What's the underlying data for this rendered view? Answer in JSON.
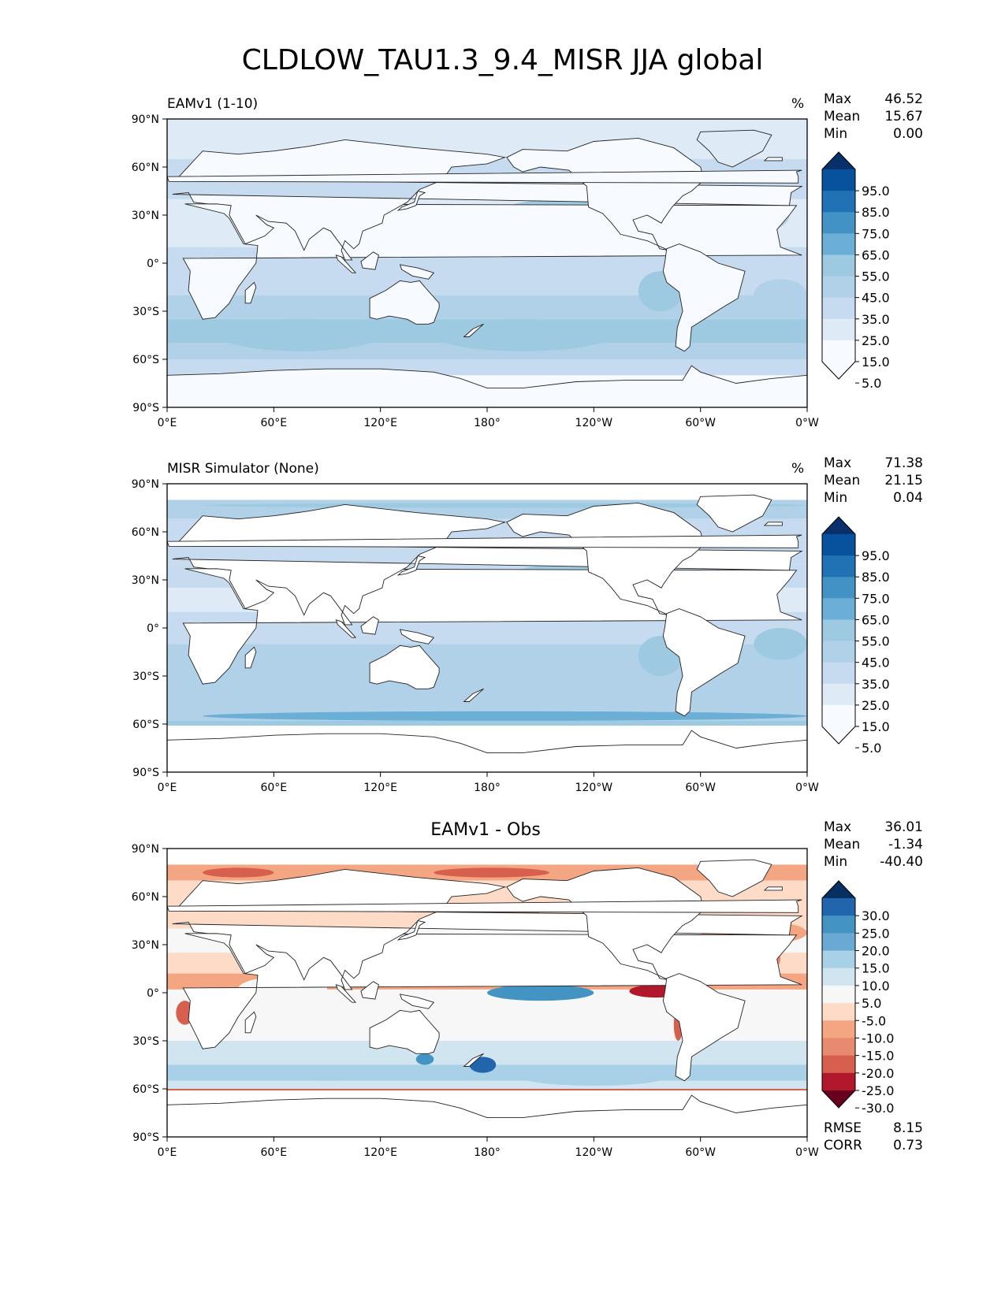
{
  "title": "CLDLOW_TAU1.3_9.4_MISR JJA global",
  "colors": {
    "blues": [
      "#f7fbff",
      "#deebf7",
      "#c6dbef",
      "#b0d1e8",
      "#9ecae1",
      "#6baed6",
      "#4292c6",
      "#2171b5",
      "#08519c",
      "#08306b"
    ],
    "diff": [
      "#67001f",
      "#b2182b",
      "#d6604d",
      "#e88a6f",
      "#f4a582",
      "#fddbc7",
      "#f7f7f7",
      "#d1e5f0",
      "#a8d0e6",
      "#6aa9d3",
      "#4393c3",
      "#2166ac",
      "#053061"
    ],
    "land": "#ffffff",
    "coast": "#222222"
  },
  "panels": [
    {
      "label": "EAMv1 (1-10)",
      "units": "%",
      "stats": [
        {
          "k": "Max",
          "v": "46.52"
        },
        {
          "k": "Mean",
          "v": "15.67"
        },
        {
          "k": "Min",
          "v": "0.00"
        }
      ]
    },
    {
      "label": "MISR Simulator (None)",
      "units": "%",
      "stats": [
        {
          "k": "Max",
          "v": "71.38"
        },
        {
          "k": "Mean",
          "v": "21.15"
        },
        {
          "k": "Min",
          "v": "0.04"
        }
      ]
    },
    {
      "label": "EAMv1 - Obs",
      "units": "",
      "stats": [
        {
          "k": "Max",
          "v": "36.01"
        },
        {
          "k": "Mean",
          "v": "-1.34"
        },
        {
          "k": "Min",
          "v": "-40.40"
        }
      ],
      "metrics": [
        {
          "k": "RMSE",
          "v": "8.15"
        },
        {
          "k": "CORR",
          "v": "0.73"
        }
      ]
    }
  ],
  "chart_data": [
    {
      "type": "heatmap",
      "title": "EAMv1 (1-10)",
      "units": "%",
      "x_ticks": [
        "0°E",
        "60°E",
        "120°E",
        "180°",
        "120°W",
        "60°W",
        "0°W"
      ],
      "y_ticks": [
        "90°N",
        "60°N",
        "30°N",
        "0°",
        "30°S",
        "60°S",
        "90°S"
      ],
      "xlim": [
        0,
        360
      ],
      "ylim": [
        -90,
        90
      ],
      "colorbar_ticks": [
        "95.0",
        "85.0",
        "75.0",
        "65.0",
        "55.0",
        "45.0",
        "35.0",
        "25.0",
        "15.0",
        "5.0"
      ],
      "max": 46.52,
      "mean": 15.67,
      "min": 0.0
    },
    {
      "type": "heatmap",
      "title": "MISR Simulator (None)",
      "units": "%",
      "x_ticks": [
        "0°E",
        "60°E",
        "120°E",
        "180°",
        "120°W",
        "60°W",
        "0°W"
      ],
      "y_ticks": [
        "90°N",
        "60°N",
        "30°N",
        "0°",
        "30°S",
        "60°S",
        "90°S"
      ],
      "xlim": [
        0,
        360
      ],
      "ylim": [
        -90,
        90
      ],
      "colorbar_ticks": [
        "95.0",
        "85.0",
        "75.0",
        "65.0",
        "55.0",
        "45.0",
        "35.0",
        "25.0",
        "15.0",
        "5.0"
      ],
      "max": 71.38,
      "mean": 21.15,
      "min": 0.04
    },
    {
      "type": "heatmap",
      "title": "EAMv1 - Obs",
      "units": "",
      "x_ticks": [
        "0°E",
        "60°E",
        "120°E",
        "180°",
        "120°W",
        "60°W",
        "0°W"
      ],
      "y_ticks": [
        "90°N",
        "60°N",
        "30°N",
        "0°",
        "30°S",
        "60°S",
        "90°S"
      ],
      "xlim": [
        0,
        360
      ],
      "ylim": [
        -90,
        90
      ],
      "colorbar_ticks": [
        "30.0",
        "25.0",
        "20.0",
        "15.0",
        "10.0",
        "5.0",
        "-5.0",
        "-10.0",
        "-15.0",
        "-20.0",
        "-25.0",
        "-30.0"
      ],
      "max": 36.01,
      "mean": -1.34,
      "min": -40.4,
      "rmse": 8.15,
      "corr": 0.73
    }
  ]
}
